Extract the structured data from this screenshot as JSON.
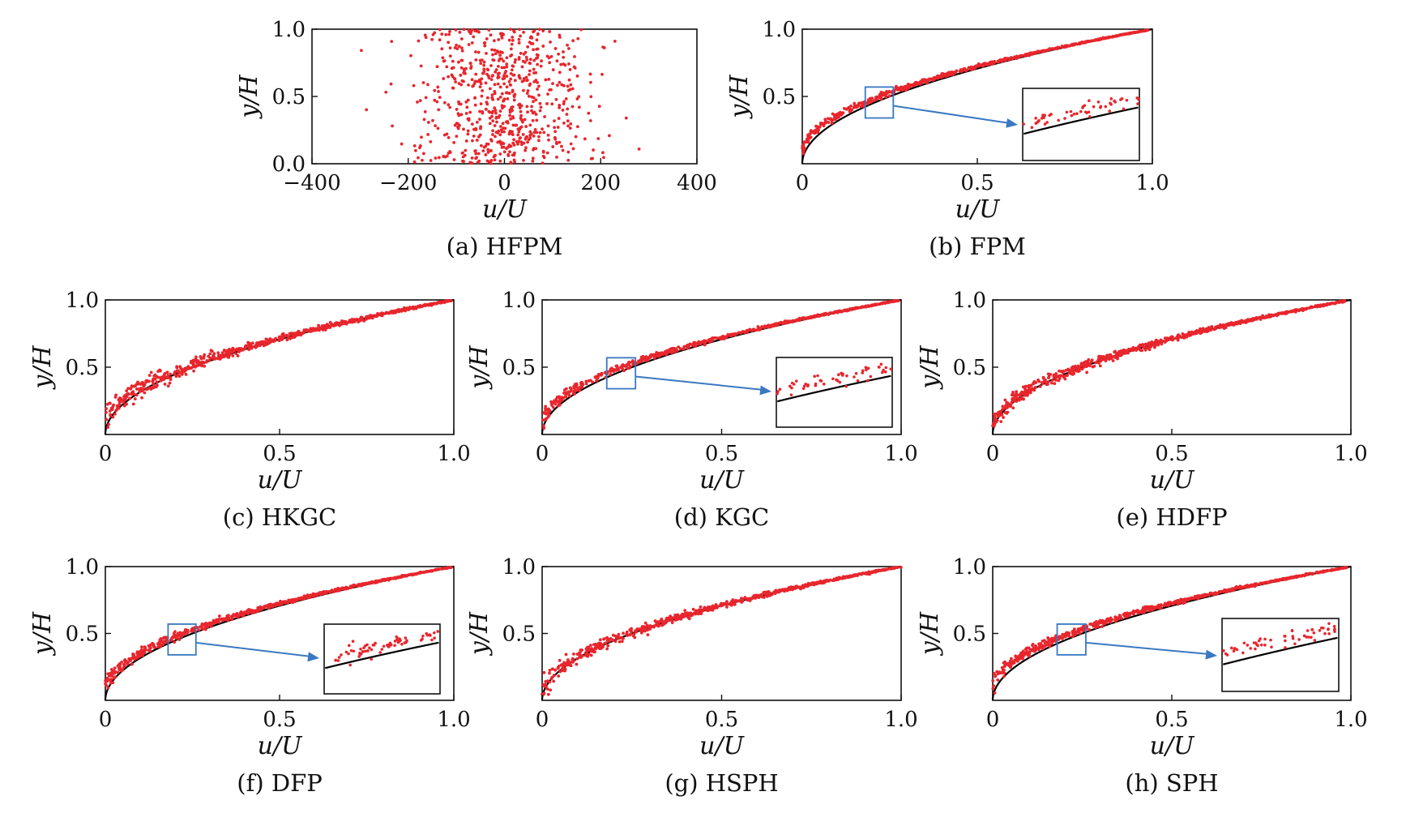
{
  "chart_data": [
    {
      "id": "a",
      "caption": "(a) HFPM",
      "type": "scatter",
      "xlabel": "u/U",
      "ylabel": "y/H",
      "xlim": [
        -400,
        400
      ],
      "ylim": [
        0,
        1
      ],
      "xticks": [
        -400,
        -200,
        0,
        200,
        400
      ],
      "xtick_labels": [
        "−400",
        "−200",
        "0",
        "200",
        "400"
      ],
      "yticks": [
        0,
        0.5,
        1.0
      ],
      "ytick_labels": [
        "0.0",
        "0.5",
        "1.0"
      ],
      "reference_curve": false,
      "scatter_mode": "random",
      "n_points": 700,
      "marker_color": "#e8262d",
      "curve_color": "#000000",
      "inset": null
    },
    {
      "id": "b",
      "caption": "(b) FPM",
      "type": "scatter",
      "xlabel": "u/U",
      "ylabel": "y/H",
      "xlim": [
        0,
        1
      ],
      "ylim": [
        0,
        1
      ],
      "xticks": [
        0,
        0.5,
        1.0
      ],
      "xtick_labels": [
        "0",
        "0.5",
        "1.0"
      ],
      "yticks": [
        0.5,
        1.0
      ],
      "ytick_labels": [
        "0.5",
        "1.0"
      ],
      "reference_curve": true,
      "scatter_mode": "curve",
      "bias": 0.03,
      "noise": 0.008,
      "n_points": 700,
      "marker_color": "#e8262d",
      "curve_color": "#000000",
      "inset": {
        "zoom_x": [
          0.18,
          0.26
        ],
        "zoom_y": [
          0.34,
          0.57
        ],
        "box_color": "#3a78c2"
      }
    },
    {
      "id": "c",
      "caption": "(c) HKGC",
      "type": "scatter",
      "xlabel": "u/U",
      "ylabel": "y/H",
      "xlim": [
        0,
        1
      ],
      "ylim": [
        0,
        1
      ],
      "xticks": [
        0,
        0.5,
        1.0
      ],
      "xtick_labels": [
        "0",
        "0.5",
        "1.0"
      ],
      "yticks": [
        0.5,
        1.0
      ],
      "ytick_labels": [
        "0.5",
        "1.0"
      ],
      "reference_curve": true,
      "scatter_mode": "curve",
      "bias": 0.015,
      "noise": 0.018,
      "n_points": 700,
      "marker_color": "#e8262d",
      "curve_color": "#000000",
      "inset": null
    },
    {
      "id": "d",
      "caption": "(d) KGC",
      "type": "scatter",
      "xlabel": "u/U",
      "ylabel": "y/H",
      "xlim": [
        0,
        1
      ],
      "ylim": [
        0,
        1
      ],
      "xticks": [
        0,
        0.5,
        1.0
      ],
      "xtick_labels": [
        "0",
        "0.5",
        "1.0"
      ],
      "yticks": [
        0.5,
        1.0
      ],
      "ytick_labels": [
        "0.5",
        "1.0"
      ],
      "reference_curve": true,
      "scatter_mode": "curve",
      "bias": 0.028,
      "noise": 0.009,
      "n_points": 700,
      "marker_color": "#e8262d",
      "curve_color": "#000000",
      "inset": {
        "zoom_x": [
          0.18,
          0.26
        ],
        "zoom_y": [
          0.34,
          0.57
        ],
        "box_color": "#3a78c2"
      }
    },
    {
      "id": "e",
      "caption": "(e) HDFP",
      "type": "scatter",
      "xlabel": "u/U",
      "ylabel": "y/H",
      "xlim": [
        0,
        1
      ],
      "ylim": [
        0,
        1
      ],
      "xticks": [
        0,
        0.5,
        1.0
      ],
      "xtick_labels": [
        "0",
        "0.5",
        "1.0"
      ],
      "yticks": [
        0.5,
        1.0
      ],
      "ytick_labels": [
        "0.5",
        "1.0"
      ],
      "reference_curve": true,
      "scatter_mode": "curve",
      "bias": 0.008,
      "noise": 0.014,
      "n_points": 700,
      "marker_color": "#e8262d",
      "curve_color": "#000000",
      "inset": null
    },
    {
      "id": "f",
      "caption": "(f) DFP",
      "type": "scatter",
      "xlabel": "u/U",
      "ylabel": "y/H",
      "xlim": [
        0,
        1
      ],
      "ylim": [
        0,
        1
      ],
      "xticks": [
        0,
        0.5,
        1.0
      ],
      "xtick_labels": [
        "0",
        "0.5",
        "1.0"
      ],
      "yticks": [
        0.5,
        1.0
      ],
      "ytick_labels": [
        "0.5",
        "1.0"
      ],
      "reference_curve": true,
      "scatter_mode": "curve",
      "bias": 0.028,
      "noise": 0.01,
      "n_points": 700,
      "marker_color": "#e8262d",
      "curve_color": "#000000",
      "inset": {
        "zoom_x": [
          0.18,
          0.26
        ],
        "zoom_y": [
          0.34,
          0.57
        ],
        "box_color": "#3a78c2"
      }
    },
    {
      "id": "g",
      "caption": "(g) HSPH",
      "type": "scatter",
      "xlabel": "u/U",
      "ylabel": "y/H",
      "xlim": [
        0,
        1
      ],
      "ylim": [
        0,
        1
      ],
      "xticks": [
        0,
        0.5,
        1.0
      ],
      "xtick_labels": [
        "0",
        "0.5",
        "1.0"
      ],
      "yticks": [
        0.5,
        1.0
      ],
      "ytick_labels": [
        "0.5",
        "1.0"
      ],
      "reference_curve": true,
      "scatter_mode": "curve",
      "bias": 0.008,
      "noise": 0.013,
      "n_points": 700,
      "marker_color": "#e8262d",
      "curve_color": "#000000",
      "inset": null
    },
    {
      "id": "h",
      "caption": "(h) SPH",
      "type": "scatter",
      "xlabel": "u/U",
      "ylabel": "y/H",
      "xlim": [
        0,
        1
      ],
      "ylim": [
        0,
        1
      ],
      "xticks": [
        0,
        0.5,
        1.0
      ],
      "xtick_labels": [
        "0",
        "0.5",
        "1.0"
      ],
      "yticks": [
        0.5,
        1.0
      ],
      "ytick_labels": [
        "0.5",
        "1.0"
      ],
      "reference_curve": true,
      "scatter_mode": "curve",
      "bias": 0.035,
      "noise": 0.01,
      "n_points": 700,
      "marker_color": "#e8262d",
      "curve_color": "#000000",
      "inset": {
        "zoom_x": [
          0.18,
          0.26
        ],
        "zoom_y": [
          0.34,
          0.57
        ],
        "box_color": "#3a78c2"
      }
    }
  ]
}
